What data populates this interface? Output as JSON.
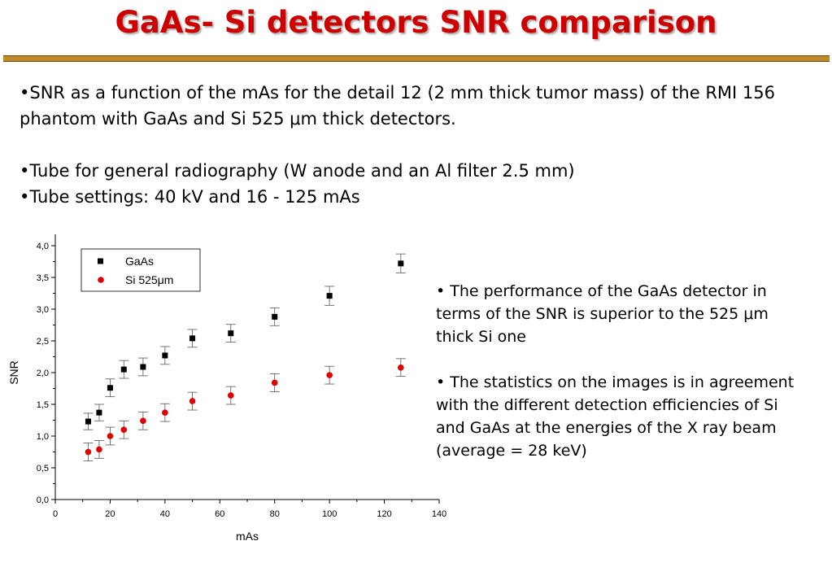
{
  "title": "GaAs- Si detectors SNR comparison",
  "bullets": [
    {
      "pre": "•SNR as a function of the mAs for the detail 12 (2 mm thick tumor mass) of the RMI 156 phantom with GaAs and Si 525 ",
      "mu": "μ",
      "post": "m thick detectors."
    },
    {
      "text": "•Tube for general radiography (W anode and an Al filter 2.5 mm)"
    },
    {
      "text": "•Tube settings: 40 kV and 16 - 125 mAs"
    }
  ],
  "side_notes": [
    {
      "pre": "• The performance of the GaAs detector in terms of the SNR is superior to the 525 ",
      "mu": "μ",
      "post": "m thick Si one"
    },
    {
      "text": "• The statistics on the images is in agreement with the different detection efficiencies of Si and GaAs at the energies of the X ray beam (average = 28 keV)"
    }
  ],
  "chart_data": {
    "type": "scatter",
    "xlabel": "mAs",
    "ylabel": "SNR",
    "xlim": [
      0,
      140
    ],
    "ylim": [
      0,
      4
    ],
    "xticks": [
      "0",
      "20",
      "40",
      "60",
      "80",
      "100",
      "120",
      "140"
    ],
    "yticks": [
      "0,0",
      "0,5",
      "1,0",
      "1,5",
      "2,0",
      "2,5",
      "3,0",
      "3,5",
      "4,0"
    ],
    "grid": false,
    "legend_position": "top-left",
    "series": [
      {
        "name": "GaAs",
        "marker": "square",
        "color": "#000000",
        "points": [
          {
            "x": 12,
            "y": 1.23,
            "err": 0.13
          },
          {
            "x": 16,
            "y": 1.37,
            "err": 0.13
          },
          {
            "x": 20,
            "y": 1.76,
            "err": 0.14
          },
          {
            "x": 25,
            "y": 2.05,
            "err": 0.14
          },
          {
            "x": 32,
            "y": 2.09,
            "err": 0.14
          },
          {
            "x": 40,
            "y": 2.27,
            "err": 0.14
          },
          {
            "x": 50,
            "y": 2.54,
            "err": 0.14
          },
          {
            "x": 64,
            "y": 2.62,
            "err": 0.14
          },
          {
            "x": 80,
            "y": 2.88,
            "err": 0.14
          },
          {
            "x": 100,
            "y": 3.21,
            "err": 0.15
          },
          {
            "x": 126,
            "y": 3.72,
            "err": 0.15
          }
        ]
      },
      {
        "name": "Si 525μm",
        "marker": "circle",
        "color": "#e00000",
        "points": [
          {
            "x": 12,
            "y": 0.75,
            "err": 0.14
          },
          {
            "x": 16,
            "y": 0.79,
            "err": 0.14
          },
          {
            "x": 20,
            "y": 1.0,
            "err": 0.14
          },
          {
            "x": 25,
            "y": 1.1,
            "err": 0.14
          },
          {
            "x": 32,
            "y": 1.24,
            "err": 0.14
          },
          {
            "x": 40,
            "y": 1.37,
            "err": 0.14
          },
          {
            "x": 50,
            "y": 1.55,
            "err": 0.14
          },
          {
            "x": 64,
            "y": 1.64,
            "err": 0.14
          },
          {
            "x": 80,
            "y": 1.84,
            "err": 0.14
          },
          {
            "x": 100,
            "y": 1.96,
            "err": 0.14
          },
          {
            "x": 126,
            "y": 2.08,
            "err": 0.14
          }
        ]
      }
    ]
  }
}
